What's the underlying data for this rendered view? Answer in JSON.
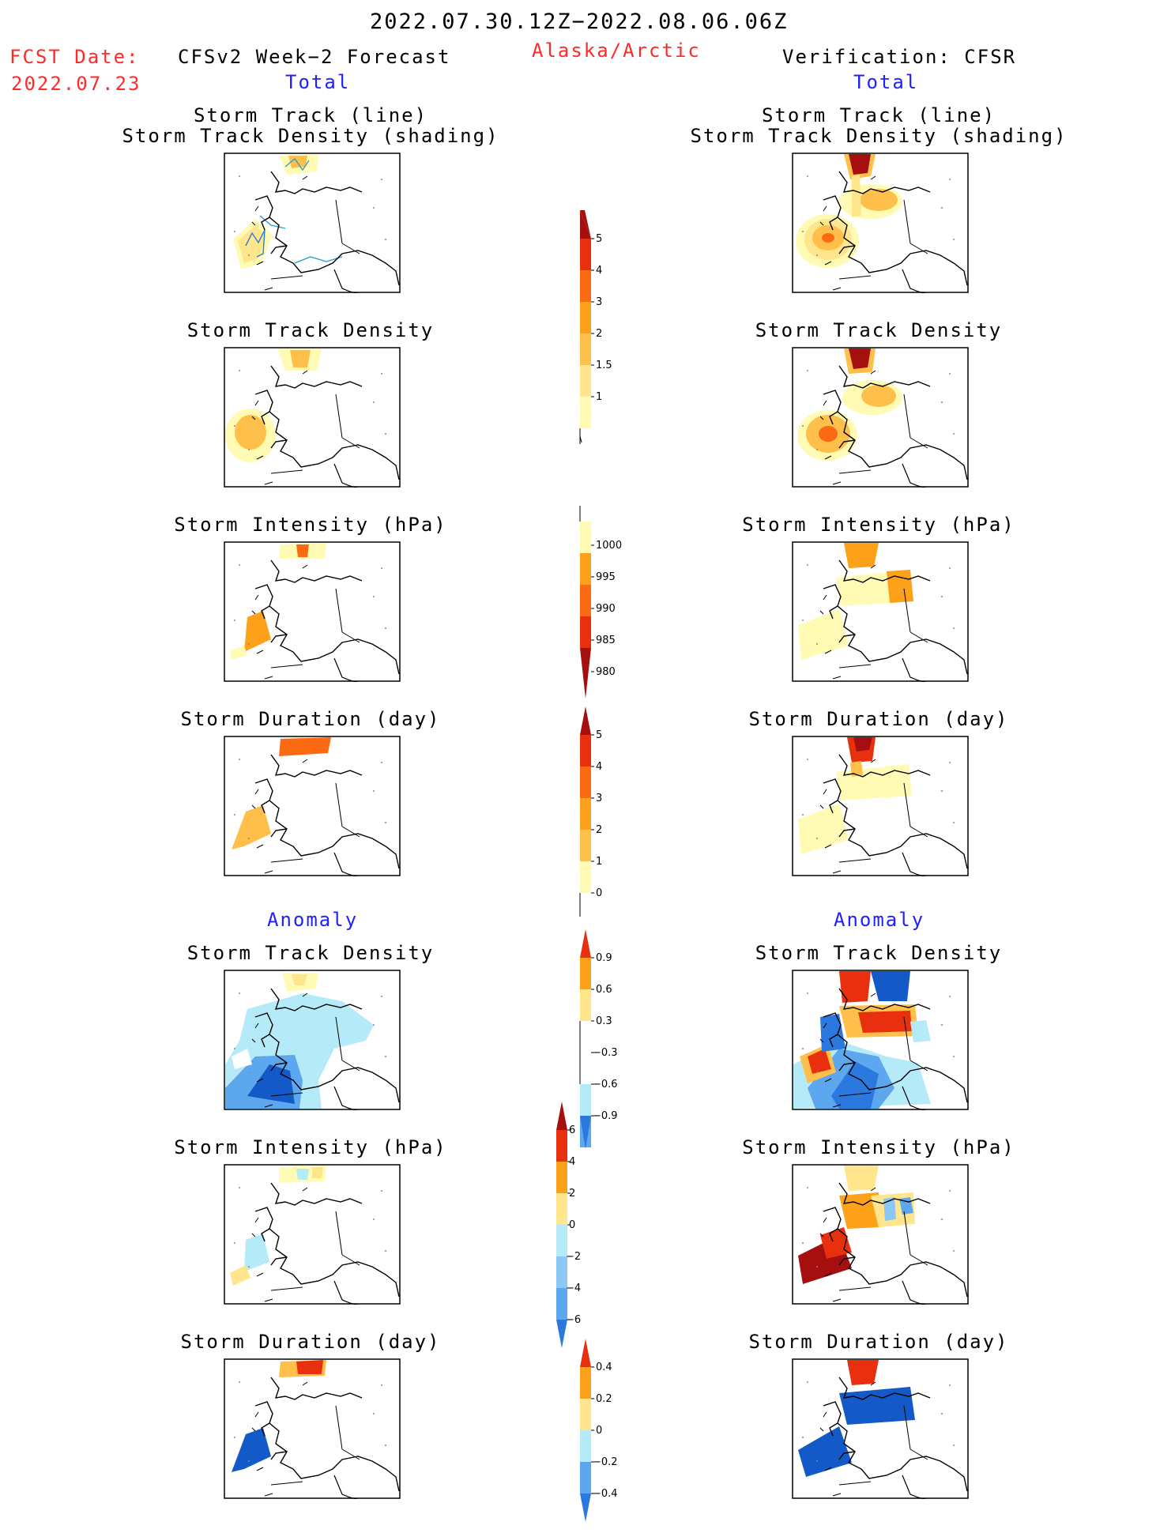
{
  "header": {
    "date_range": "2022.07.30.12Z−2022.08.06.06Z",
    "fcst_label": "FCST Date:",
    "fcst_date": "2022.07.23",
    "left_title": "CFSv2 Week−2 Forecast",
    "region": "Alaska/Arctic",
    "right_title": "Verification: CFSR",
    "left_sub": "Total",
    "right_sub": "Total",
    "anomaly_left": "Anomaly",
    "anomaly_right": "Anomaly"
  },
  "panels": {
    "track_line": "Storm Track (line)",
    "track_shading": "Storm Track Density (shading)",
    "density": "Storm Track Density",
    "intensity": "Storm Intensity (hPa)",
    "duration": "Storm Duration (day)"
  },
  "colorbars": {
    "density_total": [
      "5",
      "4",
      "3",
      "2",
      "1.5",
      "1"
    ],
    "intensity_total": [
      "1000",
      "995",
      "990",
      "985",
      "980"
    ],
    "duration_total": [
      "5",
      "4",
      "3",
      "2",
      "1",
      "0"
    ],
    "density_anom": [
      "0.9",
      "0.6",
      "0.3",
      "−0.3",
      "−0.6",
      "−0.9"
    ],
    "intensity_anom": [
      "6",
      "4",
      "2",
      "0",
      "−2",
      "−4",
      "−6"
    ],
    "duration_anom": [
      "0.4",
      "0.2",
      "0",
      "−0.2",
      "−0.4"
    ]
  },
  "colors": {
    "header_red": "#ff2a2a",
    "header_blue": "#2020ff",
    "warm": [
      "#fffbb4",
      "#ffe68c",
      "#fec04a",
      "#fda01a",
      "#fc6a14",
      "#e8300e",
      "#a50f0f"
    ],
    "cool": [
      "#b5eaf8",
      "#8cc8f5",
      "#5da7ee",
      "#2b78df",
      "#1459c8"
    ]
  }
}
